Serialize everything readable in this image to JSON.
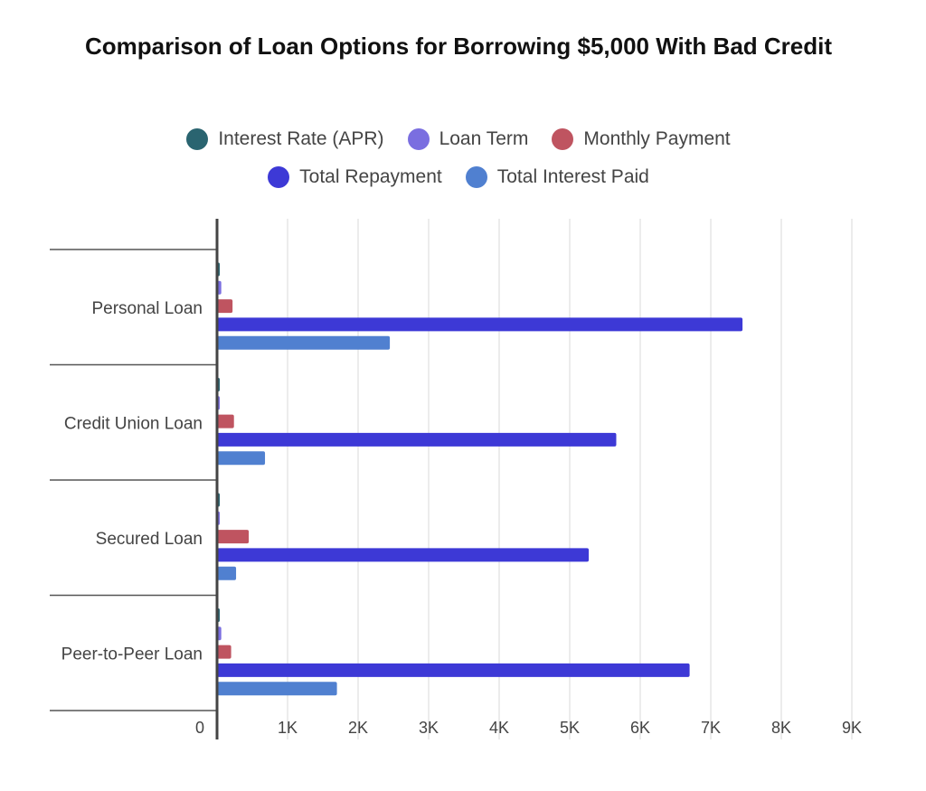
{
  "chart_data": {
    "type": "bar",
    "orientation": "horizontal",
    "title": "Comparison of Loan Options for Borrowing $5,000 With Bad Credit",
    "xlabel": "",
    "ylabel": "",
    "xlim": [
      0,
      9000
    ],
    "grid": true,
    "legend_placement": "top-center",
    "categories": [
      "Personal Loan",
      "Credit Union Loan",
      "Secured Loan",
      "Peer-to-Peer Loan"
    ],
    "x_ticks": [
      0,
      1000,
      2000,
      3000,
      4000,
      5000,
      6000,
      7000,
      8000,
      9000
    ],
    "x_tick_labels": [
      "0",
      "1K",
      "2K",
      "3K",
      "4K",
      "5K",
      "6K",
      "7K",
      "8K",
      "9K"
    ],
    "series": [
      {
        "name": "Interest Rate (APR)",
        "color": "#2a6470",
        "values": [
          36,
          28,
          30,
          32
        ]
      },
      {
        "name": "Loan Term",
        "color": "#7a6ee0",
        "values": [
          60,
          36,
          36,
          60
        ]
      },
      {
        "name": "Monthly Payment",
        "color": "#bf5460",
        "values": [
          220,
          240,
          450,
          200
        ]
      },
      {
        "name": "Total Repayment",
        "color": "#3d39d6",
        "values": [
          7450,
          5660,
          5270,
          6700
        ]
      },
      {
        "name": "Total Interest Paid",
        "color": "#5080d0",
        "values": [
          2450,
          680,
          270,
          1700
        ]
      }
    ]
  }
}
